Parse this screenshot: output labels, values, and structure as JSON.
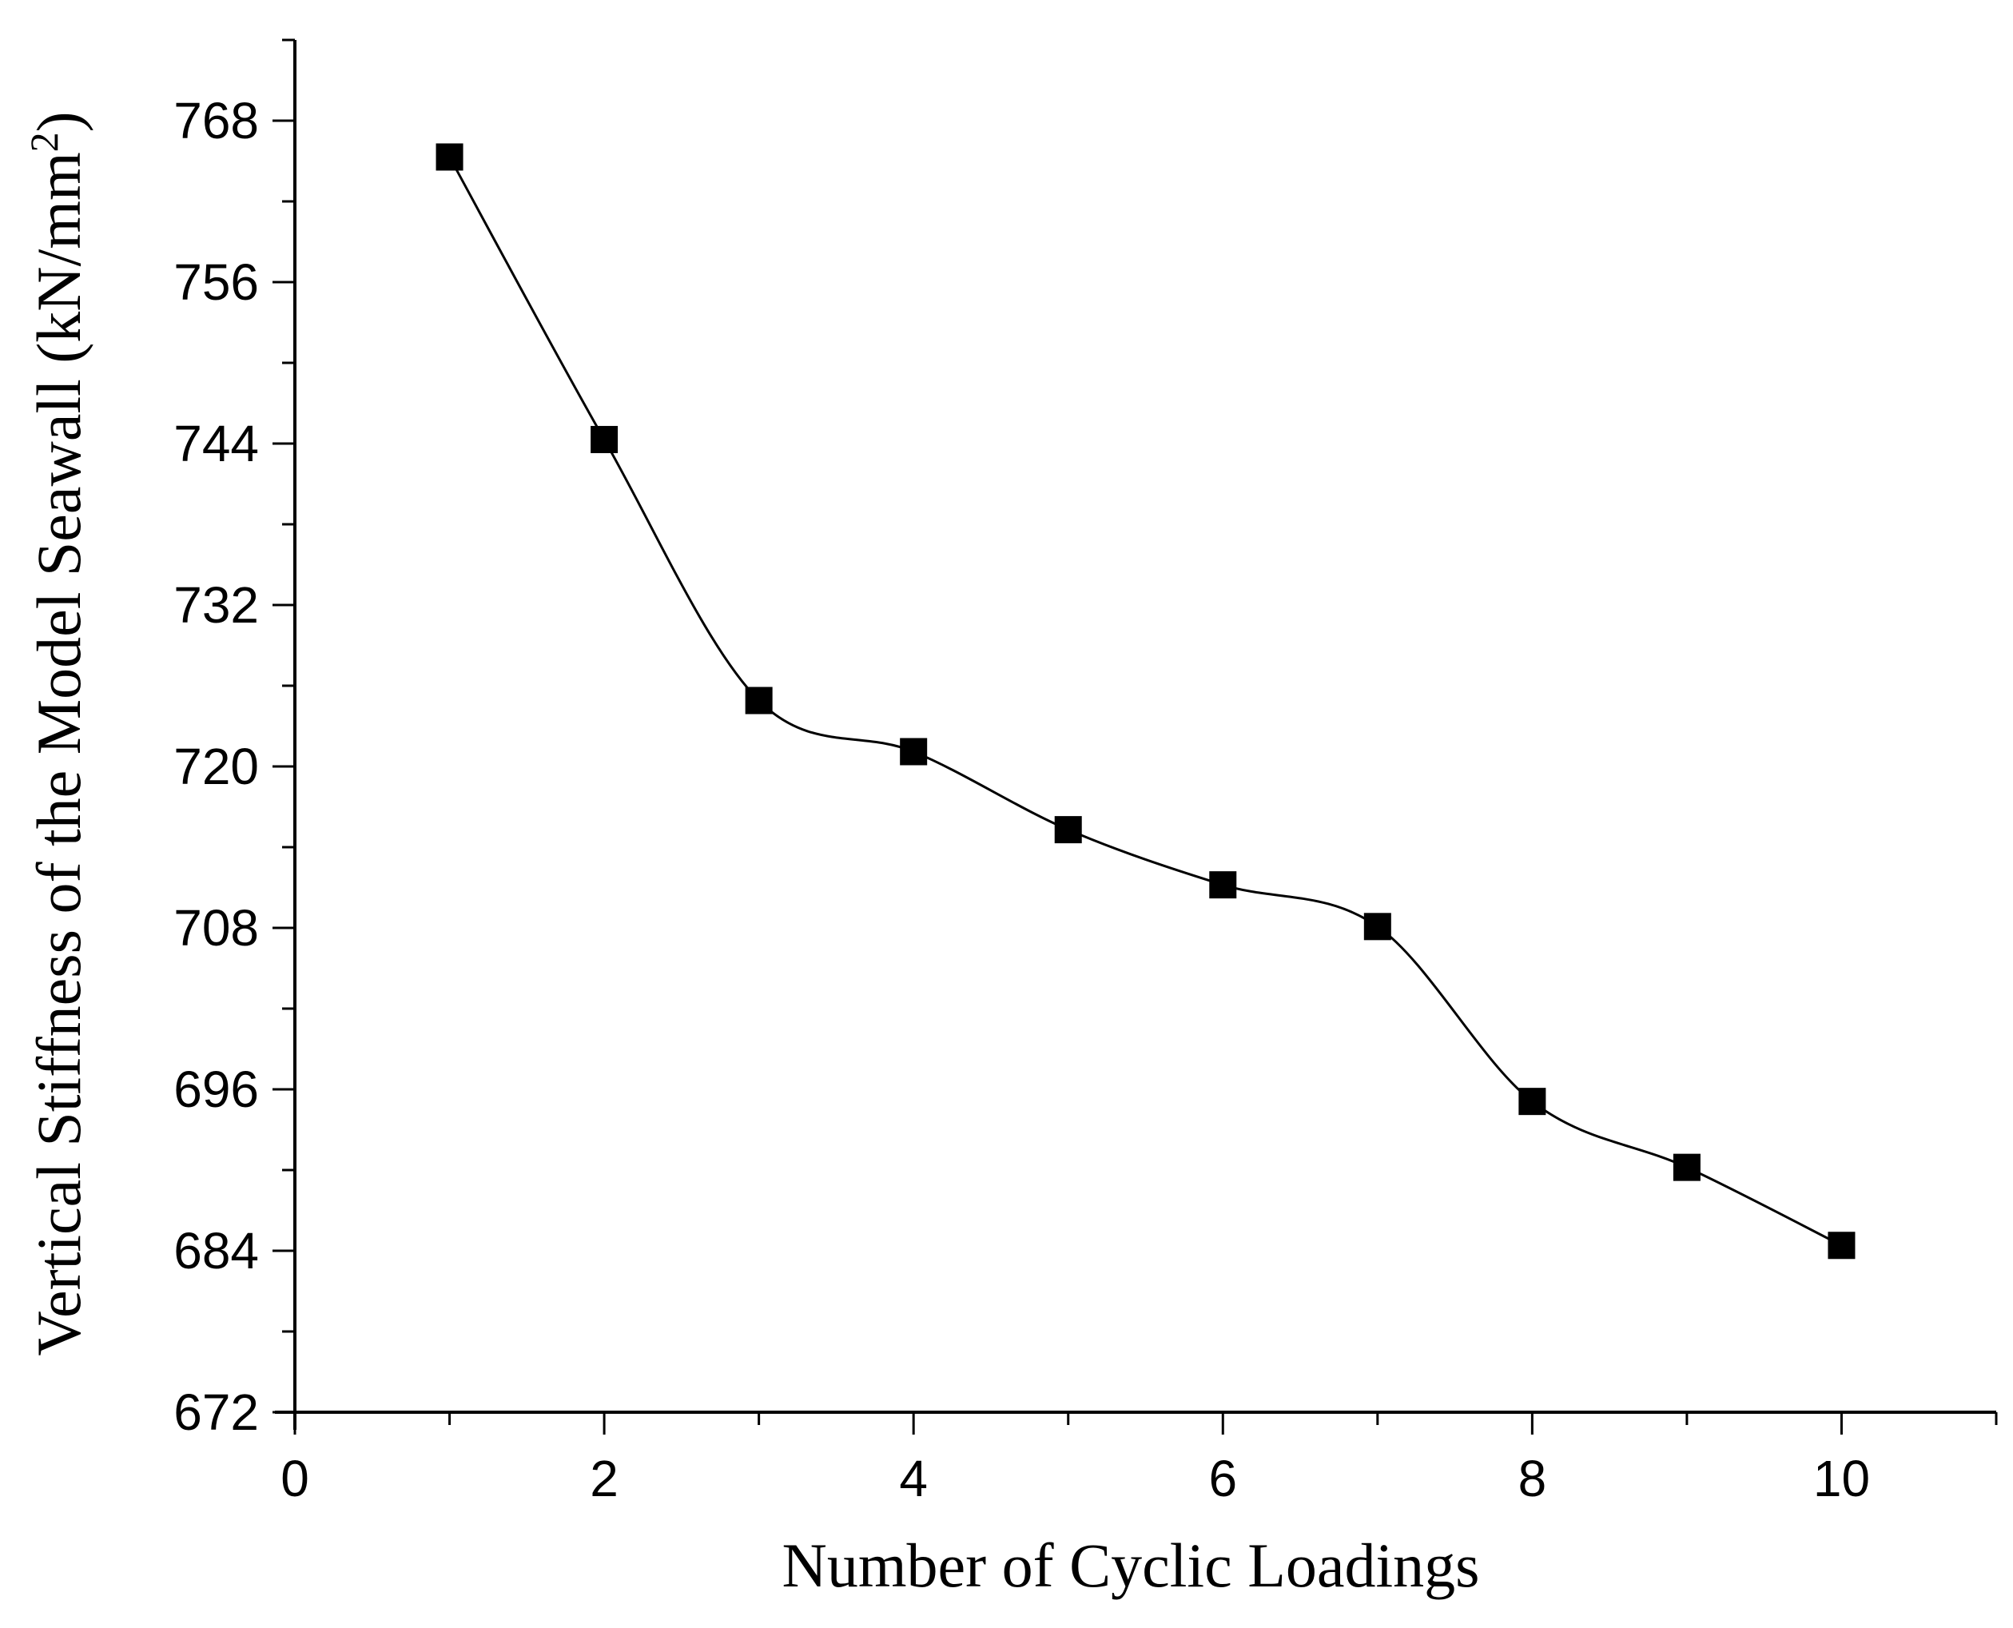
{
  "chart_data": {
    "type": "line",
    "xlabel": "Number of Cyclic Loadings",
    "ylabel_main": "Vertical Stiffness of the Model Seawall (kN/mm",
    "ylabel_sup": "2",
    "ylabel_close": ")",
    "xlim": [
      0,
      11
    ],
    "ylim": [
      672,
      774
    ],
    "xticks": [
      0,
      2,
      4,
      6,
      8,
      10
    ],
    "yticks": [
      672,
      684,
      696,
      708,
      720,
      732,
      744,
      756,
      768
    ],
    "xticks_labels": [
      "0",
      "2",
      "4",
      "6",
      "8",
      "10"
    ],
    "yticks_labels": [
      "672",
      "684",
      "696",
      "708",
      "720",
      "732",
      "744",
      "756",
      "768"
    ],
    "grid": false,
    "marker": "square",
    "line_style": "smooth",
    "series": [
      {
        "x": [
          1,
          2,
          3,
          4,
          5,
          6,
          7,
          8,
          9,
          10
        ],
        "y": [
          765.3,
          744.3,
          724.9,
          721.1,
          715.3,
          711.2,
          708.1,
          695.1,
          690.2,
          684.4
        ],
        "color": "#000000"
      }
    ]
  }
}
